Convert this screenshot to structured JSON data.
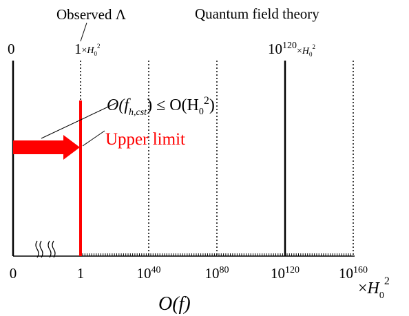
{
  "colors": {
    "axis": "#000000",
    "highlight": "#ff0000",
    "background": "#ffffff"
  },
  "labels": {
    "observed": "Observed Λ",
    "qft": "Quantum field theory",
    "top_zero": "0",
    "top_one": "1",
    "times": "×",
    "h": "H",
    "sub0": "0",
    "sup2": "2",
    "top_big_mantissa": "10",
    "top_big_exp": "120",
    "formula_left": "O(f",
    "formula_sub": "h,cst",
    "formula_mid": ") ≤ O(H",
    "formula_sub2": "0",
    "formula_sup": "2",
    "formula_close": ")",
    "upper_limit": "Upper limit",
    "axis_title_O": "O",
    "axis_title_paren": "(f)"
  },
  "bottom_ticks": [
    {
      "base": "0",
      "exp": ""
    },
    {
      "base": "1",
      "exp": ""
    },
    {
      "base": "10",
      "exp": "40"
    },
    {
      "base": "10",
      "exp": "80"
    },
    {
      "base": "10",
      "exp": "120"
    },
    {
      "base": "10",
      "exp": "160"
    }
  ],
  "unit": {
    "times": "×",
    "h": "H",
    "sub": "0",
    "sup": "2"
  }
}
